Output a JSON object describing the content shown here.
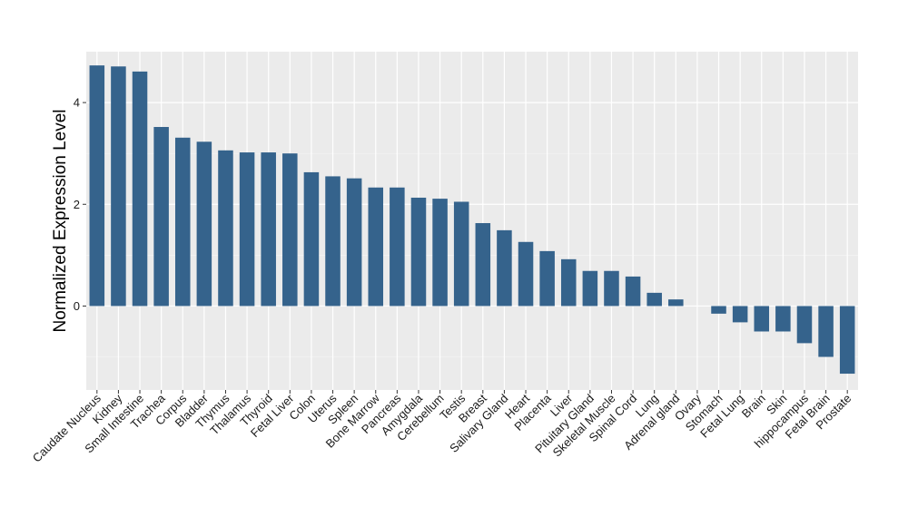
{
  "chart_data": {
    "type": "bar",
    "title": "",
    "xlabel": "",
    "ylabel": "Normalized Expression Level",
    "ylim": [
      -1.65,
      5.0
    ],
    "yticks": [
      0,
      2,
      4
    ],
    "grid": true,
    "colors": {
      "bar": "#35638C",
      "panel": "#EBEBEB",
      "grid_major": "#FFFFFF",
      "grid_minor": "#F5F5F5"
    },
    "categories": [
      "Caudate Nucleus",
      "Kidney",
      "Small Intestine",
      "Trachea",
      "Corpus",
      "Bladder",
      "Thymus",
      "Thalamus",
      "Thyroid",
      "Fetal Liver",
      "Colon",
      "Uterus",
      "Spleen",
      "Bone Marrow",
      "Pancreas",
      "Amygdala",
      "Cerebellum",
      "Testis",
      "Breast",
      "Salivary Gland",
      "Heart",
      "Placenta",
      "Liver",
      "Pituitary Gland",
      "Skeletal Muscle",
      "Spinal Cord",
      "Lung",
      "Adrenal gland",
      "Ovary",
      "Stomach",
      "Fetal Lung",
      "Brain",
      "Skin",
      "hippocampus",
      "Fetal Brain",
      "Prostate"
    ],
    "values": [
      4.73,
      4.71,
      4.61,
      3.52,
      3.31,
      3.23,
      3.06,
      3.02,
      3.02,
      3.0,
      2.63,
      2.55,
      2.51,
      2.33,
      2.33,
      2.13,
      2.11,
      2.05,
      1.63,
      1.49,
      1.26,
      1.08,
      0.92,
      0.69,
      0.69,
      0.58,
      0.26,
      0.13,
      0.0,
      -0.15,
      -0.32,
      -0.5,
      -0.5,
      -0.73,
      -1.0,
      -1.33
    ]
  }
}
